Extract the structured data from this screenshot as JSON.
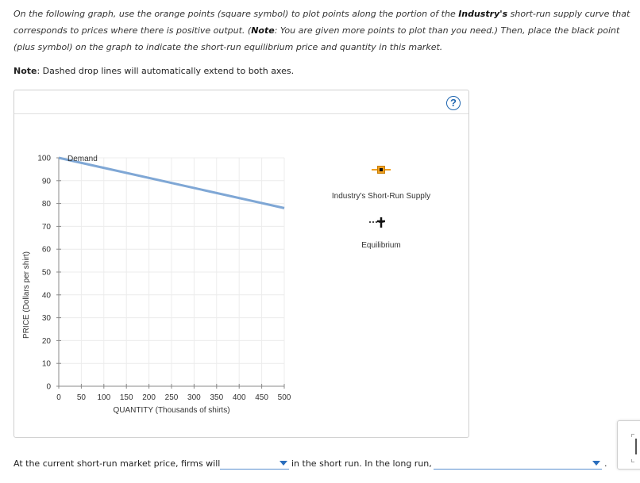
{
  "instructions": {
    "part1": "On the following graph, use the orange points (square symbol) to plot points along the portion of the ",
    "bold1": "Industry's",
    "part2": " short-run supply curve that corresponds to prices where there is positive output. (",
    "bold2": "Note",
    "part3": ": You are given more points to plot than you need.) Then, place the black point (plus symbol) on the graph to indicate the short-run equilibrium price and quantity in this market."
  },
  "note": {
    "label": "Note",
    "text": ": Dashed drop lines will automatically extend to both axes."
  },
  "panel": {
    "help_label": "?"
  },
  "chart_data": {
    "type": "line",
    "xlabel": "QUANTITY (Thousands of shirts)",
    "ylabel": "PRICE (Dollars per shirt)",
    "xlim": [
      0,
      500
    ],
    "ylim": [
      0,
      100
    ],
    "x_ticks": [
      "0",
      "50",
      "100",
      "150",
      "200",
      "250",
      "300",
      "350",
      "400",
      "450",
      "500"
    ],
    "y_ticks": [
      "0",
      "10",
      "20",
      "30",
      "40",
      "50",
      "60",
      "70",
      "80",
      "90",
      "100"
    ],
    "grid": true,
    "series": [
      {
        "name": "Demand",
        "color": "#7fa7d5",
        "x": [
          0,
          500
        ],
        "y": [
          100,
          78
        ]
      }
    ]
  },
  "palette": {
    "supply_label": "Industry's Short-Run Supply",
    "supply_color": "#f0a020",
    "equilibrium_label": "Equilibrium",
    "equilibrium_color": "#111111"
  },
  "bottom": {
    "text1": "At the current short-run market price, firms will",
    "text2": "in the short run. In the long run,",
    "dropdown1_value": "",
    "dropdown2_value": "",
    "end_punct": "."
  }
}
